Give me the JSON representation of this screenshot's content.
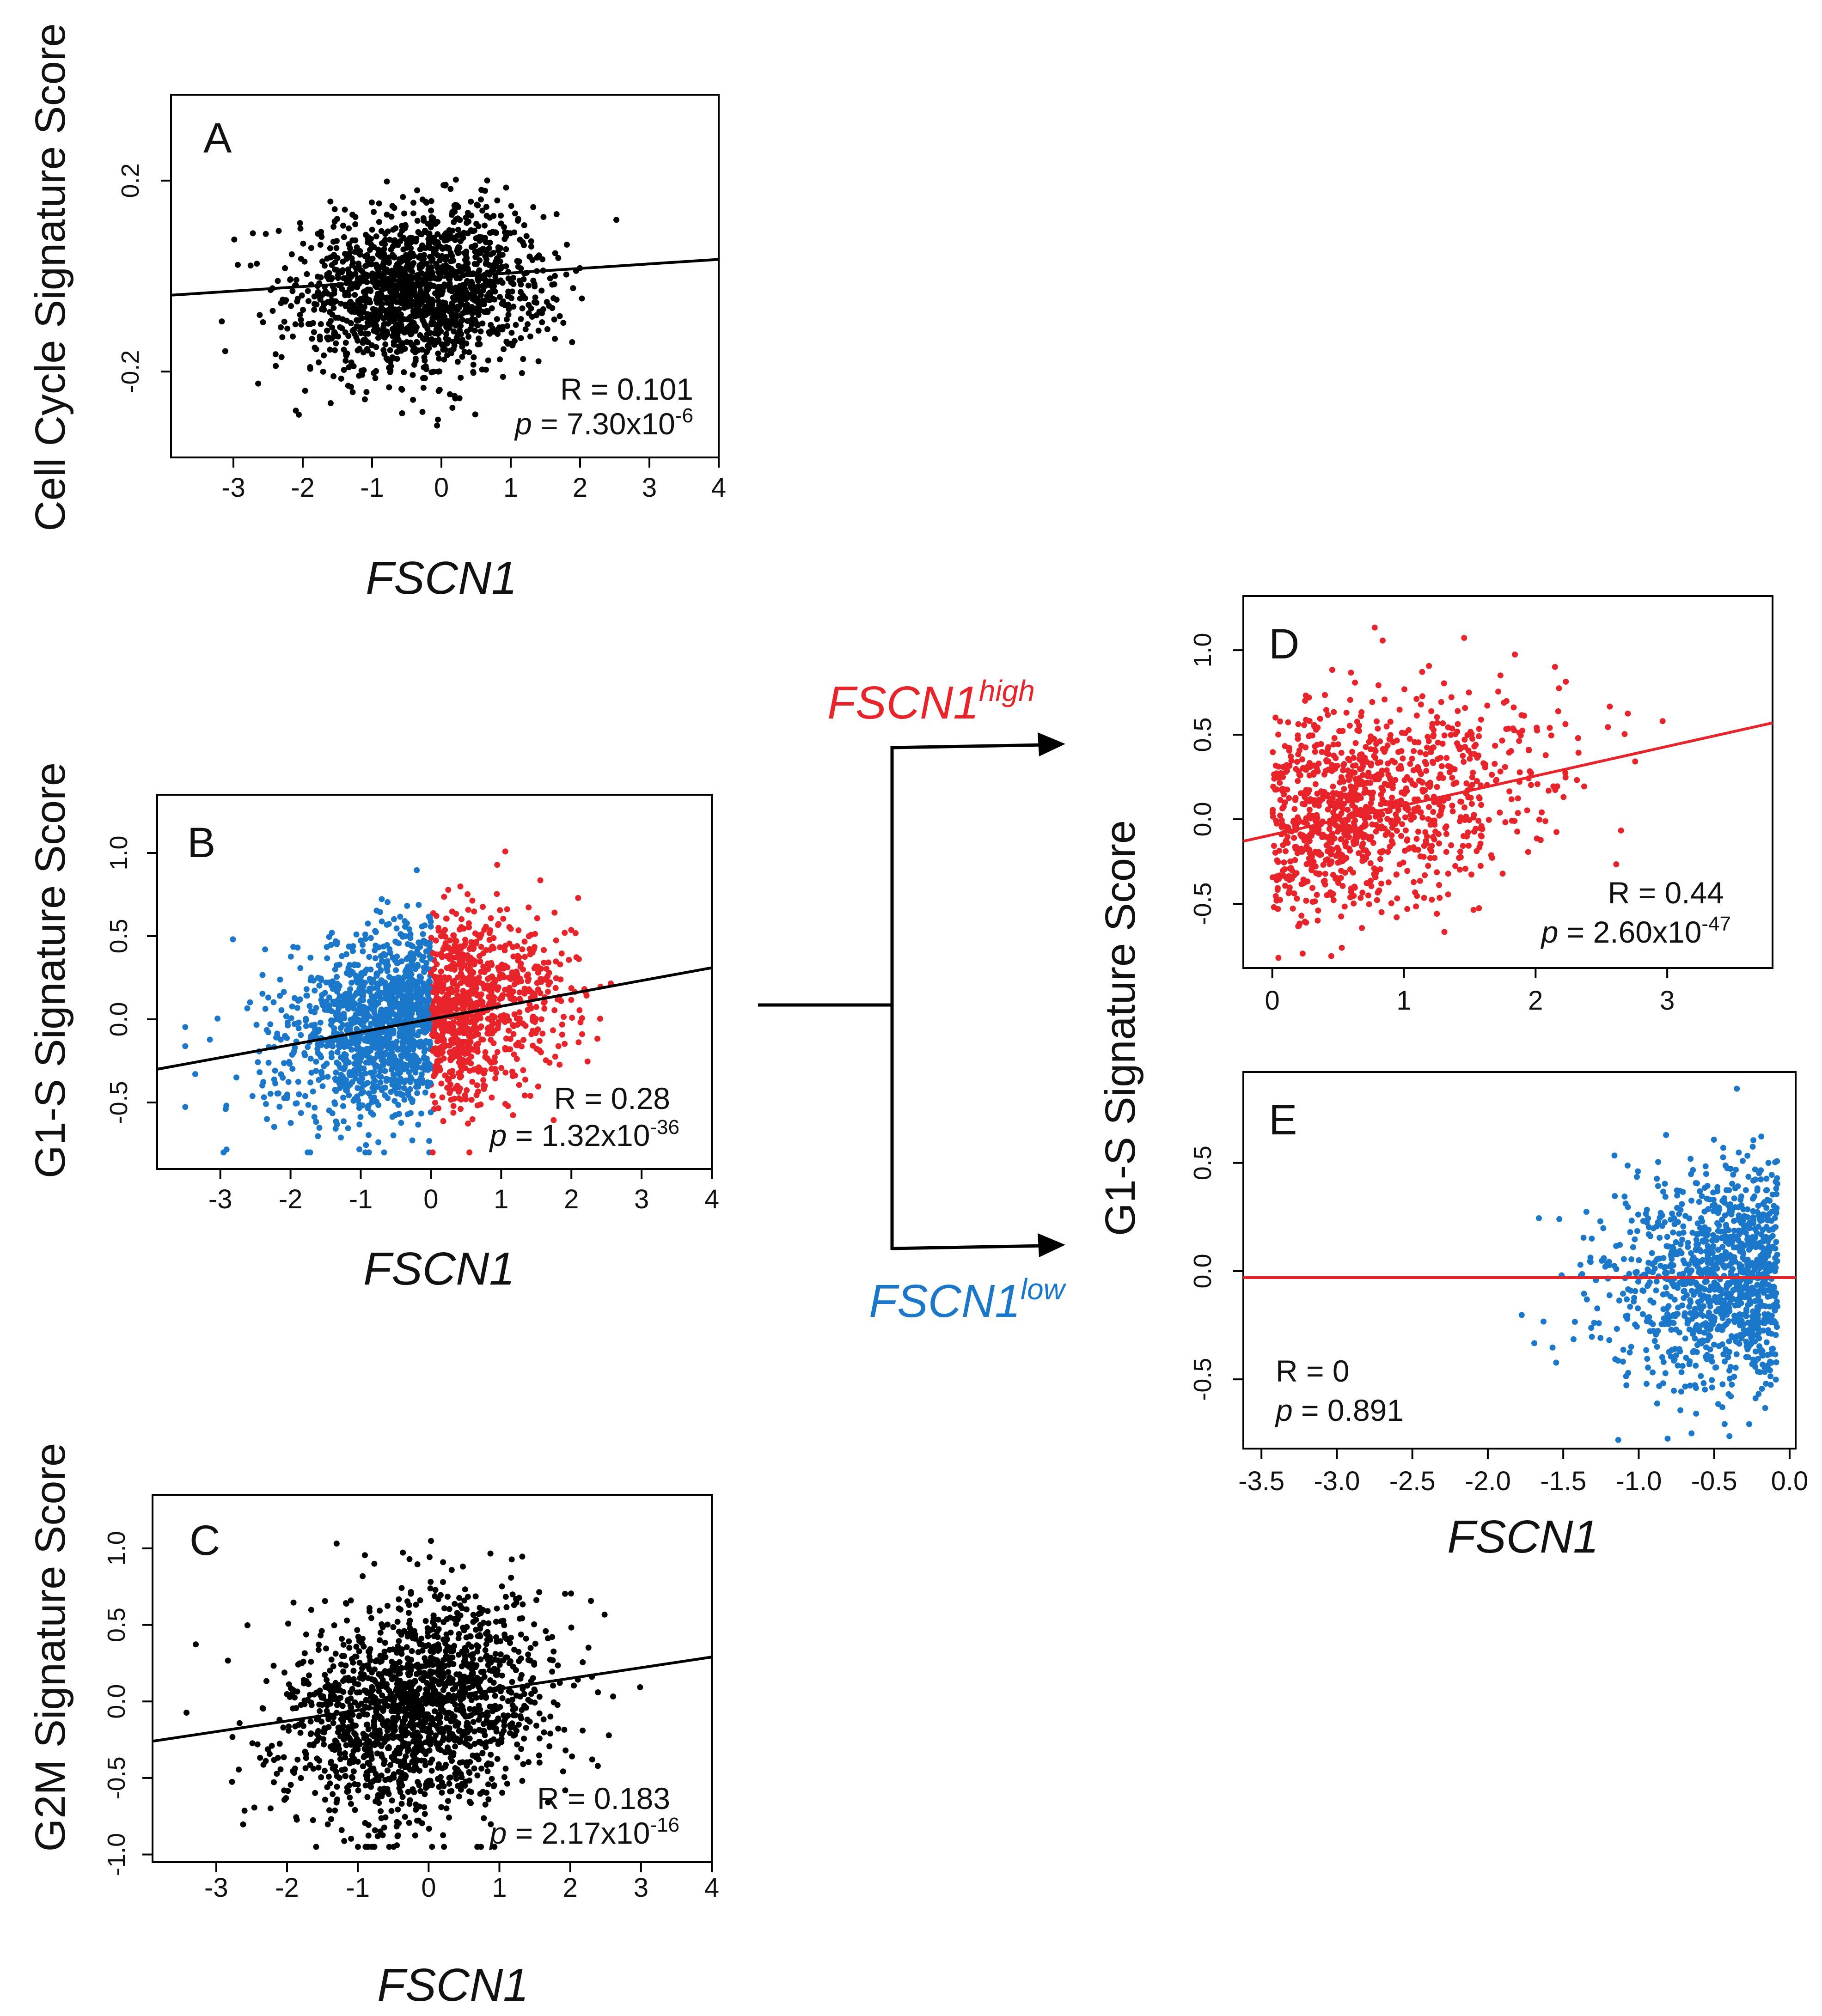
{
  "figure": {
    "arrow_labels": {
      "high_prefix": "FSCN1",
      "high_suffix": "high",
      "low_prefix": "FSCN1",
      "low_suffix": "low"
    },
    "colors": {
      "black": "#000000",
      "red": "#e8232a",
      "blue": "#1a77c9",
      "text": "#111111"
    }
  },
  "chart_data": [
    {
      "id": "A",
      "type": "scatter",
      "panel_letter": "A",
      "ylabel": "Cell Cycle Signature Score",
      "xlabel": "FSCN1",
      "xticks": [
        "-3",
        "-2",
        "-1",
        "0",
        "1",
        "2",
        "3",
        "4"
      ],
      "xtick_values": [
        -3,
        -2,
        -1,
        0,
        1,
        2,
        3,
        4
      ],
      "yticks": [
        "-0.2",
        "0.2"
      ],
      "ytick_values": [
        -0.2,
        0.2
      ],
      "xlim": [
        -3.9,
        4.0
      ],
      "ylim": [
        -0.38,
        0.38
      ],
      "stats": {
        "r": "R = 0.101",
        "p_prefix": "p",
        "p_value": " = 7.30x10",
        "p_exp": "-6"
      },
      "regression": {
        "x0": -3.9,
        "y0": -0.04,
        "x1": 4.0,
        "y1": 0.035
      },
      "cloud": {
        "n": 1600,
        "xmean": -0.3,
        "xsd": 0.9,
        "ymean": -0.03,
        "ysd": 0.085,
        "xmin": -3.6,
        "xmax": 3.8,
        "ymin": -0.36,
        "ymax": 0.36,
        "corr": 0.101
      },
      "color": "#000000",
      "line_color": "#000000"
    },
    {
      "id": "B",
      "type": "scatter",
      "panel_letter": "B",
      "ylabel": "G1-S Signature Score",
      "xlabel": "FSCN1",
      "xticks": [
        "-3",
        "-2",
        "-1",
        "0",
        "1",
        "2",
        "3",
        "4"
      ],
      "xtick_values": [
        -3,
        -2,
        -1,
        0,
        1,
        2,
        3,
        4
      ],
      "yticks": [
        "-0.5",
        "0.0",
        "0.5",
        "1.0"
      ],
      "ytick_values": [
        -0.5,
        0.0,
        0.5,
        1.0
      ],
      "xlim": [
        -3.9,
        4.0
      ],
      "ylim": [
        -0.9,
        1.35
      ],
      "stats": {
        "r": "R = 0.28",
        "p_prefix": "p",
        "p_value": " = 1.32x10",
        "p_exp": "-36"
      },
      "regression": {
        "x0": -3.9,
        "y0": -0.3,
        "x1": 4.0,
        "y1": 0.31
      },
      "cloud": {
        "n": 2200,
        "xmean": -0.2,
        "xsd": 0.95,
        "ymean": 0.0,
        "ysd": 0.28,
        "xmin": -3.5,
        "xmax": 3.8,
        "ymin": -0.8,
        "ymax": 1.25,
        "corr": 0.28,
        "split_at": 0
      },
      "color_low": "#1a77c9",
      "color_high": "#e8232a",
      "line_color": "#000000"
    },
    {
      "id": "C",
      "type": "scatter",
      "panel_letter": "C",
      "ylabel": "G2M Signature Score",
      "xlabel": "FSCN1",
      "xticks": [
        "-3",
        "-2",
        "-1",
        "0",
        "1",
        "2",
        "3",
        "4"
      ],
      "xtick_values": [
        -3,
        -2,
        -1,
        0,
        1,
        2,
        3,
        4
      ],
      "yticks": [
        "-1.0",
        "-0.5",
        "0.0",
        "0.5",
        "1.0"
      ],
      "ytick_values": [
        -1.0,
        -0.5,
        0.0,
        0.5,
        1.0
      ],
      "xlim": [
        -3.9,
        4.0
      ],
      "ylim": [
        -1.05,
        1.35
      ],
      "stats": {
        "r": "R = 0.183",
        "p_prefix": "p",
        "p_value": " = 2.17x10",
        "p_exp": "-16"
      },
      "regression": {
        "x0": -3.9,
        "y0": -0.26,
        "x1": 4.0,
        "y1": 0.29
      },
      "cloud": {
        "n": 1700,
        "xmean": -0.2,
        "xsd": 0.95,
        "ymean": -0.05,
        "ysd": 0.36,
        "xmin": -3.6,
        "xmax": 3.8,
        "ymin": -0.95,
        "ymax": 1.28,
        "corr": 0.183
      },
      "color": "#000000",
      "line_color": "#000000"
    },
    {
      "id": "D",
      "type": "scatter",
      "panel_letter": "D",
      "ylabel": "G1-S Signature Score",
      "xlabel": "",
      "xticks": [
        "0",
        "1",
        "2",
        "3"
      ],
      "xtick_values": [
        0,
        1,
        2,
        3
      ],
      "yticks": [
        "-0.5",
        "0.0",
        "0.5",
        "1.0"
      ],
      "ytick_values": [
        -0.5,
        0.0,
        0.5,
        1.0
      ],
      "xlim": [
        -0.22,
        3.8
      ],
      "ylim": [
        -0.88,
        1.32
      ],
      "stats": {
        "r": "R = 0.44",
        "p_prefix": "p",
        "p_value": " = 2.60x10",
        "p_exp": "-47"
      },
      "regression": {
        "x0": -0.22,
        "y0": -0.13,
        "x1": 3.8,
        "y1": 0.57
      },
      "cloud": {
        "n": 1100,
        "xmean": 0.7,
        "xsd": 0.75,
        "ymean": 0.05,
        "ysd": 0.3,
        "xmin": 0.0,
        "xmax": 3.7,
        "ymin": -0.82,
        "ymax": 1.27,
        "corr": 0.44
      },
      "color": "#e8232a",
      "line_color": "#e8232a"
    },
    {
      "id": "E",
      "type": "scatter",
      "panel_letter": "E",
      "ylabel": "",
      "xlabel": "FSCN1",
      "xticks": [
        "-3.5",
        "-3.0",
        "-2.5",
        "-2.0",
        "-1.5",
        "-1.0",
        "-0.5",
        "0.0"
      ],
      "xtick_values": [
        -3.5,
        -3.0,
        -2.5,
        -2.0,
        -1.5,
        -1.0,
        -0.5,
        0.0
      ],
      "yticks": [
        "-0.5",
        "0.0",
        "0.5"
      ],
      "ytick_values": [
        -0.5,
        0.0,
        0.5
      ],
      "xlim": [
        -3.62,
        0.04
      ],
      "ylim": [
        -0.82,
        0.92
      ],
      "stats": {
        "r": "R = 0",
        "p_prefix": "p",
        "p_value": " = 0.891",
        "p_exp": ""
      },
      "regression": {
        "x0": -3.62,
        "y0": -0.03,
        "x1": 0.04,
        "y1": -0.03
      },
      "cloud": {
        "n": 1100,
        "xmean": -0.55,
        "xsd": 0.55,
        "ymean": -0.03,
        "ysd": 0.26,
        "xmin": -3.5,
        "xmax": -0.08,
        "ymin": -0.78,
        "ymax": 0.88,
        "corr": 0.0,
        "skew_right": true
      },
      "color": "#1a77c9",
      "line_color": "#e8232a"
    }
  ]
}
